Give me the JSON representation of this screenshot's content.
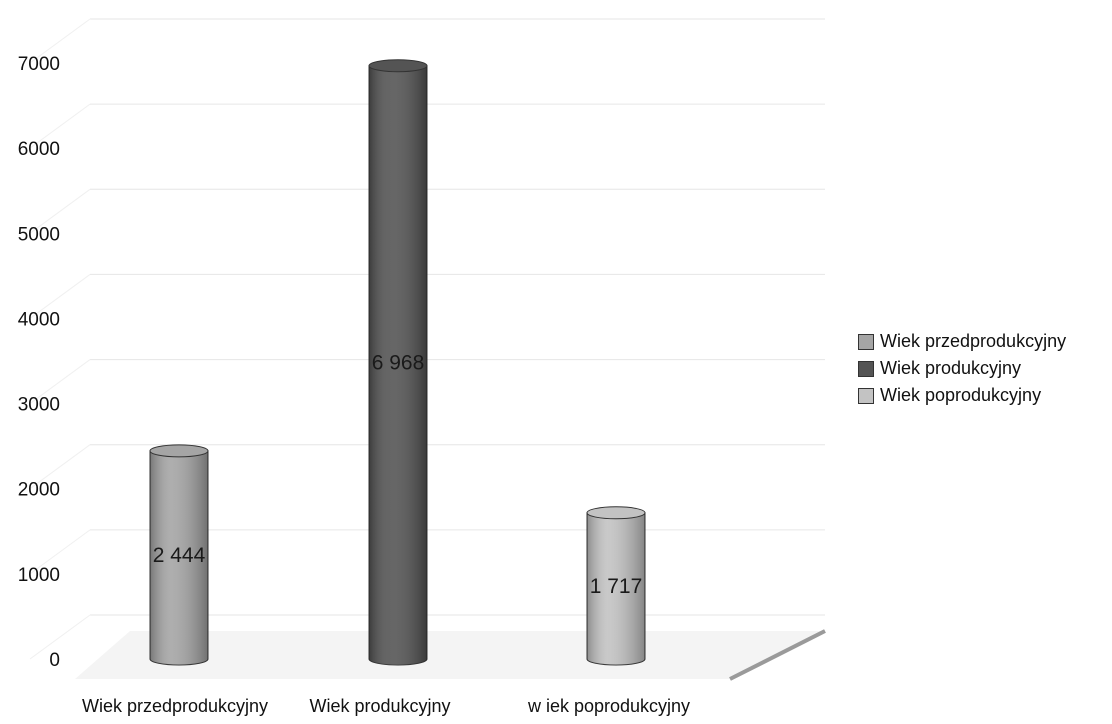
{
  "chart_data": {
    "type": "bar",
    "style": "3d-cylinder",
    "categories": [
      "Wiek przedprodukcyjny",
      "Wiek produkcyjny",
      "w iek poprodukcyjny"
    ],
    "values": [
      2444,
      6968,
      1717
    ],
    "value_labels": [
      "2 444",
      "6 968",
      "1 717"
    ],
    "colors": [
      "#a5a5a5",
      "#545454",
      "#c3c3c3"
    ],
    "ylim": [
      0,
      7000
    ],
    "yticks": [
      0,
      1000,
      2000,
      3000,
      4000,
      5000,
      6000,
      7000
    ],
    "ytick_labels": [
      "0",
      "1000",
      "2000",
      "3000",
      "4000",
      "5000",
      "6000",
      "7000"
    ],
    "grid": true,
    "legend_position": "right",
    "legend": [
      "Wiek przedprodukcyjny",
      "Wiek produkcyjny",
      "Wiek poprodukcyjny"
    ],
    "title": "",
    "xlabel": "",
    "ylabel": ""
  }
}
